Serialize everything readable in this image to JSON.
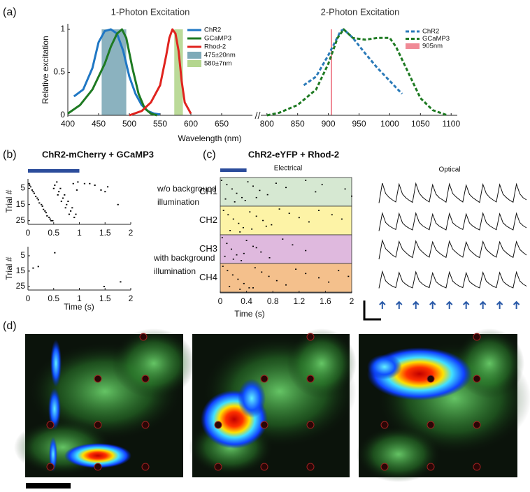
{
  "chart_data": [
    {
      "type": "line",
      "panel_label": "(a)",
      "title": "1-Photon Excitation",
      "xlabel": "Wavelength (nm)",
      "ylabel": "Relative excitation",
      "xlim": [
        400,
        700
      ],
      "ylim": [
        0,
        1
      ],
      "xticks": [
        400,
        450,
        500,
        550,
        600,
        650
      ],
      "yticks": [
        0,
        0.5,
        1
      ],
      "series": [
        {
          "name": "ChR2",
          "color": "#1f77c4",
          "x": [
            410,
            425,
            440,
            450,
            460,
            470,
            480,
            490,
            500,
            510,
            520,
            530,
            540,
            550
          ],
          "values": [
            0.22,
            0.3,
            0.55,
            0.85,
            0.98,
            1.0,
            0.95,
            0.75,
            0.45,
            0.25,
            0.12,
            0.05,
            0.02,
            0.01
          ]
        },
        {
          "name": "GCaMP3",
          "color": "#1e7a22",
          "x": [
            400,
            420,
            440,
            460,
            470,
            480,
            488,
            495,
            505,
            515,
            525,
            535,
            545
          ],
          "values": [
            0.02,
            0.12,
            0.3,
            0.6,
            0.8,
            0.95,
            1.0,
            0.9,
            0.55,
            0.25,
            0.08,
            0.02,
            0.0
          ]
        },
        {
          "name": "Rhod-2",
          "color": "#e0231e",
          "x": [
            500,
            520,
            535,
            550,
            560,
            565,
            570,
            575,
            580,
            585,
            590,
            600
          ],
          "values": [
            0.0,
            0.05,
            0.15,
            0.35,
            0.7,
            0.9,
            1.0,
            0.95,
            0.75,
            0.4,
            0.15,
            0.02
          ]
        }
      ],
      "spans": [
        {
          "name": "475±20nm",
          "color": "#7eaab8",
          "range": [
            455,
            495
          ]
        },
        {
          "name": "580±7nm",
          "color": "#b4d68e",
          "range": [
            573,
            587
          ]
        }
      ]
    },
    {
      "type": "line",
      "title": "2-Photon Excitation",
      "xlim": [
        790,
        1110
      ],
      "ylim": [
        0,
        1
      ],
      "xticks": [
        800,
        850,
        900,
        950,
        1000,
        1050,
        1100
      ],
      "dashed": true,
      "series": [
        {
          "name": "ChR2",
          "color": "#2a7ab8",
          "x": [
            860,
            880,
            900,
            920,
            925,
            940,
            960,
            980,
            1000,
            1020
          ],
          "values": [
            0.35,
            0.45,
            0.7,
            0.98,
            1.0,
            0.9,
            0.72,
            0.55,
            0.4,
            0.25
          ]
        },
        {
          "name": "GCaMP3",
          "color": "#1e7a22",
          "x": [
            800,
            820,
            850,
            880,
            900,
            915,
            925,
            940,
            960,
            980,
            1000,
            1010,
            1030,
            1050,
            1070,
            1090,
            1095
          ],
          "values": [
            0.0,
            0.03,
            0.12,
            0.3,
            0.6,
            0.9,
            1.0,
            0.9,
            0.88,
            0.9,
            0.9,
            0.8,
            0.5,
            0.2,
            0.06,
            0.01,
            0.0
          ]
        }
      ],
      "markers": [
        {
          "name": "905nm",
          "color": "#f08a96",
          "x": 905
        }
      ]
    },
    {
      "type": "raster",
      "panel_label": "(b)",
      "title": "ChR2-mCherry + GCaMP3",
      "ylabel": "Trial #",
      "annotation": [
        "w/o background",
        "illumination"
      ],
      "stimulus": [
        0,
        1
      ],
      "stimulus_color": "#2b4c9b",
      "xlim": [
        0,
        2
      ],
      "ylim": [
        0,
        26
      ],
      "y_inverted": true,
      "xticks": [
        0,
        0.5,
        1,
        1.5,
        2
      ],
      "yticks": [
        5,
        15,
        25
      ],
      "x": [
        0.02,
        0.08,
        0.15,
        0.22,
        0.3,
        0.37,
        0.45,
        0.52,
        0.6,
        0.68,
        0.75,
        0.83,
        0.9,
        0.97,
        0.05,
        0.12,
        0.2,
        0.28,
        0.35,
        0.43,
        0.5,
        0.58,
        0.65,
        0.73,
        0.8,
        0.88,
        0.95,
        0.03,
        0.1,
        0.18,
        0.26,
        0.33,
        0.41,
        0.48,
        0.56,
        0.63,
        0.71,
        0.78,
        0.86,
        0.93,
        1.1,
        1.2,
        1.3,
        1.42,
        1.55,
        1.5,
        1.75
      ],
      "y": [
        2,
        6,
        10,
        14,
        18,
        22,
        25,
        3,
        7,
        11,
        15,
        19,
        23,
        1,
        4,
        8,
        12,
        16,
        20,
        24,
        5,
        9,
        13,
        17,
        21,
        2,
        6,
        3,
        7,
        11,
        15,
        19,
        23,
        25,
        1,
        5,
        9,
        13,
        17,
        21,
        2,
        2,
        3,
        6,
        4,
        7,
        15
      ]
    },
    {
      "type": "raster",
      "ylabel": "Trial #",
      "xlabel": "Time (s)",
      "annotation": [
        "with background",
        "illumination"
      ],
      "xlim": [
        0,
        2
      ],
      "ylim": [
        0,
        26
      ],
      "y_inverted": true,
      "xticks": [
        0,
        0.5,
        1,
        1.5,
        2
      ],
      "yticks": [
        5,
        15,
        25
      ],
      "x": [
        0.52,
        0.1,
        0.2,
        1.8,
        1.48
      ],
      "y": [
        3,
        13,
        12,
        22,
        25
      ]
    },
    {
      "type": "channel_raster",
      "panel_label": "(c)",
      "title": "ChR2-eYFP + Rhod-2",
      "subtitle": "Electrical",
      "xlabel": "Time (s)",
      "xlim": [
        0,
        2
      ],
      "xticks": [
        0,
        0.4,
        0.8,
        1.2,
        1.6,
        2
      ],
      "ylim": [
        0,
        20
      ],
      "stimulus": [
        0,
        0.4
      ],
      "stimulus_color": "#2b4c9b",
      "series": [
        {
          "name": "CH1",
          "color": "#d6e8d2",
          "x": [
            0.02,
            0.1,
            0.18,
            0.25,
            0.33,
            0.42,
            0.5,
            0.6,
            0.72,
            0.85,
            1.0,
            1.3,
            1.45,
            1.55,
            1.9,
            2.0,
            0.08,
            0.22,
            0.38,
            0.55
          ],
          "y": [
            2,
            5,
            8,
            11,
            14,
            3,
            6,
            9,
            12,
            4,
            7,
            2,
            10,
            5,
            8,
            13,
            15,
            17,
            16,
            14
          ]
        },
        {
          "name": "CH2",
          "color": "#fdf3a6",
          "x": [
            0.05,
            0.12,
            0.2,
            0.28,
            0.35,
            0.45,
            0.55,
            0.65,
            0.78,
            0.9,
            1.05,
            1.2,
            1.35,
            1.5,
            1.7,
            1.85,
            0.15,
            0.3,
            0.48,
            0.7
          ],
          "y": [
            3,
            6,
            9,
            12,
            15,
            4,
            7,
            10,
            13,
            2,
            5,
            8,
            11,
            3,
            6,
            9,
            17,
            18,
            16,
            14
          ]
        },
        {
          "name": "CH3",
          "color": "#dfb9de",
          "x": [
            0.03,
            0.1,
            0.17,
            0.25,
            0.32,
            0.4,
            0.5,
            0.62,
            0.75,
            0.95,
            1.1,
            1.3,
            0.07,
            0.2,
            0.36,
            0.55
          ],
          "y": [
            2,
            6,
            10,
            14,
            18,
            4,
            8,
            12,
            16,
            3,
            7,
            11,
            15,
            17,
            13,
            9
          ]
        },
        {
          "name": "CH4",
          "color": "#f4c08c",
          "x": [
            0.04,
            0.11,
            0.19,
            0.27,
            0.36,
            0.44,
            0.53,
            0.63,
            0.74,
            0.86,
            1.0,
            1.15,
            1.3,
            1.5,
            1.65,
            1.8,
            1.95,
            0.14,
            0.3,
            0.5
          ],
          "y": [
            2,
            5,
            8,
            11,
            14,
            17,
            3,
            6,
            9,
            12,
            15,
            4,
            7,
            10,
            13,
            5,
            9,
            16,
            18,
            17
          ]
        }
      ]
    },
    {
      "type": "traces",
      "title": "Optical",
      "ylim": [
        0,
        1
      ],
      "arrow_color": "#2a5aa8",
      "stimulus_index": [
        1,
        6,
        11,
        16,
        21,
        26,
        31,
        36,
        41
      ],
      "series": [
        {
          "values": [
            0.05,
            1,
            0.5,
            0.32,
            0.2,
            0.1,
            0.95,
            0.48,
            0.3,
            0.18,
            0.08,
            0.98,
            0.52,
            0.33,
            0.2,
            0.1,
            0.92,
            0.47,
            0.3,
            0.2,
            0.09,
            0.96,
            0.5,
            0.34,
            0.21,
            0.1,
            0.9,
            0.46,
            0.3,
            0.19,
            0.08,
            0.94,
            0.5,
            0.32,
            0.2,
            0.1,
            0.93,
            0.47,
            0.31,
            0.18,
            0.09,
            0.95,
            0.49,
            0.3,
            0.2
          ]
        },
        {
          "values": [
            0.05,
            0.9,
            0.45,
            0.3,
            0.2,
            0.12,
            0.88,
            0.44,
            0.28,
            0.18,
            0.1,
            0.9,
            0.46,
            0.3,
            0.2,
            0.11,
            0.85,
            0.42,
            0.28,
            0.19,
            0.1,
            0.88,
            0.44,
            0.3,
            0.2,
            0.12,
            0.86,
            0.43,
            0.28,
            0.18,
            0.1,
            0.9,
            0.45,
            0.3,
            0.2,
            0.11,
            0.87,
            0.44,
            0.29,
            0.19,
            0.1,
            0.89,
            0.45,
            0.3,
            0.2
          ]
        },
        {
          "values": [
            0.1,
            1,
            0.6,
            0.45,
            0.3,
            0.2,
            0.95,
            0.58,
            0.42,
            0.28,
            0.18,
            0.97,
            0.6,
            0.44,
            0.3,
            0.2,
            0.93,
            0.55,
            0.4,
            0.28,
            0.19,
            0.96,
            0.58,
            0.43,
            0.3,
            0.2,
            0.92,
            0.55,
            0.4,
            0.27,
            0.18,
            0.95,
            0.57,
            0.42,
            0.29,
            0.2,
            0.93,
            0.56,
            0.41,
            0.28,
            0.19,
            0.94,
            0.57,
            0.42,
            0.3
          ]
        },
        {
          "values": [
            0.05,
            0.85,
            0.4,
            0.25,
            0.15,
            0.08,
            0.8,
            0.38,
            0.24,
            0.14,
            0.07,
            0.83,
            0.4,
            0.25,
            0.15,
            0.08,
            0.78,
            0.37,
            0.23,
            0.14,
            0.07,
            0.82,
            0.39,
            0.25,
            0.15,
            0.08,
            0.79,
            0.37,
            0.24,
            0.14,
            0.07,
            0.81,
            0.39,
            0.25,
            0.15,
            0.08,
            0.8,
            0.38,
            0.24,
            0.14,
            0.07,
            0.82,
            0.4,
            0.25,
            0.15
          ]
        }
      ]
    }
  ],
  "image_panel": {
    "panel_label": "(d)"
  }
}
